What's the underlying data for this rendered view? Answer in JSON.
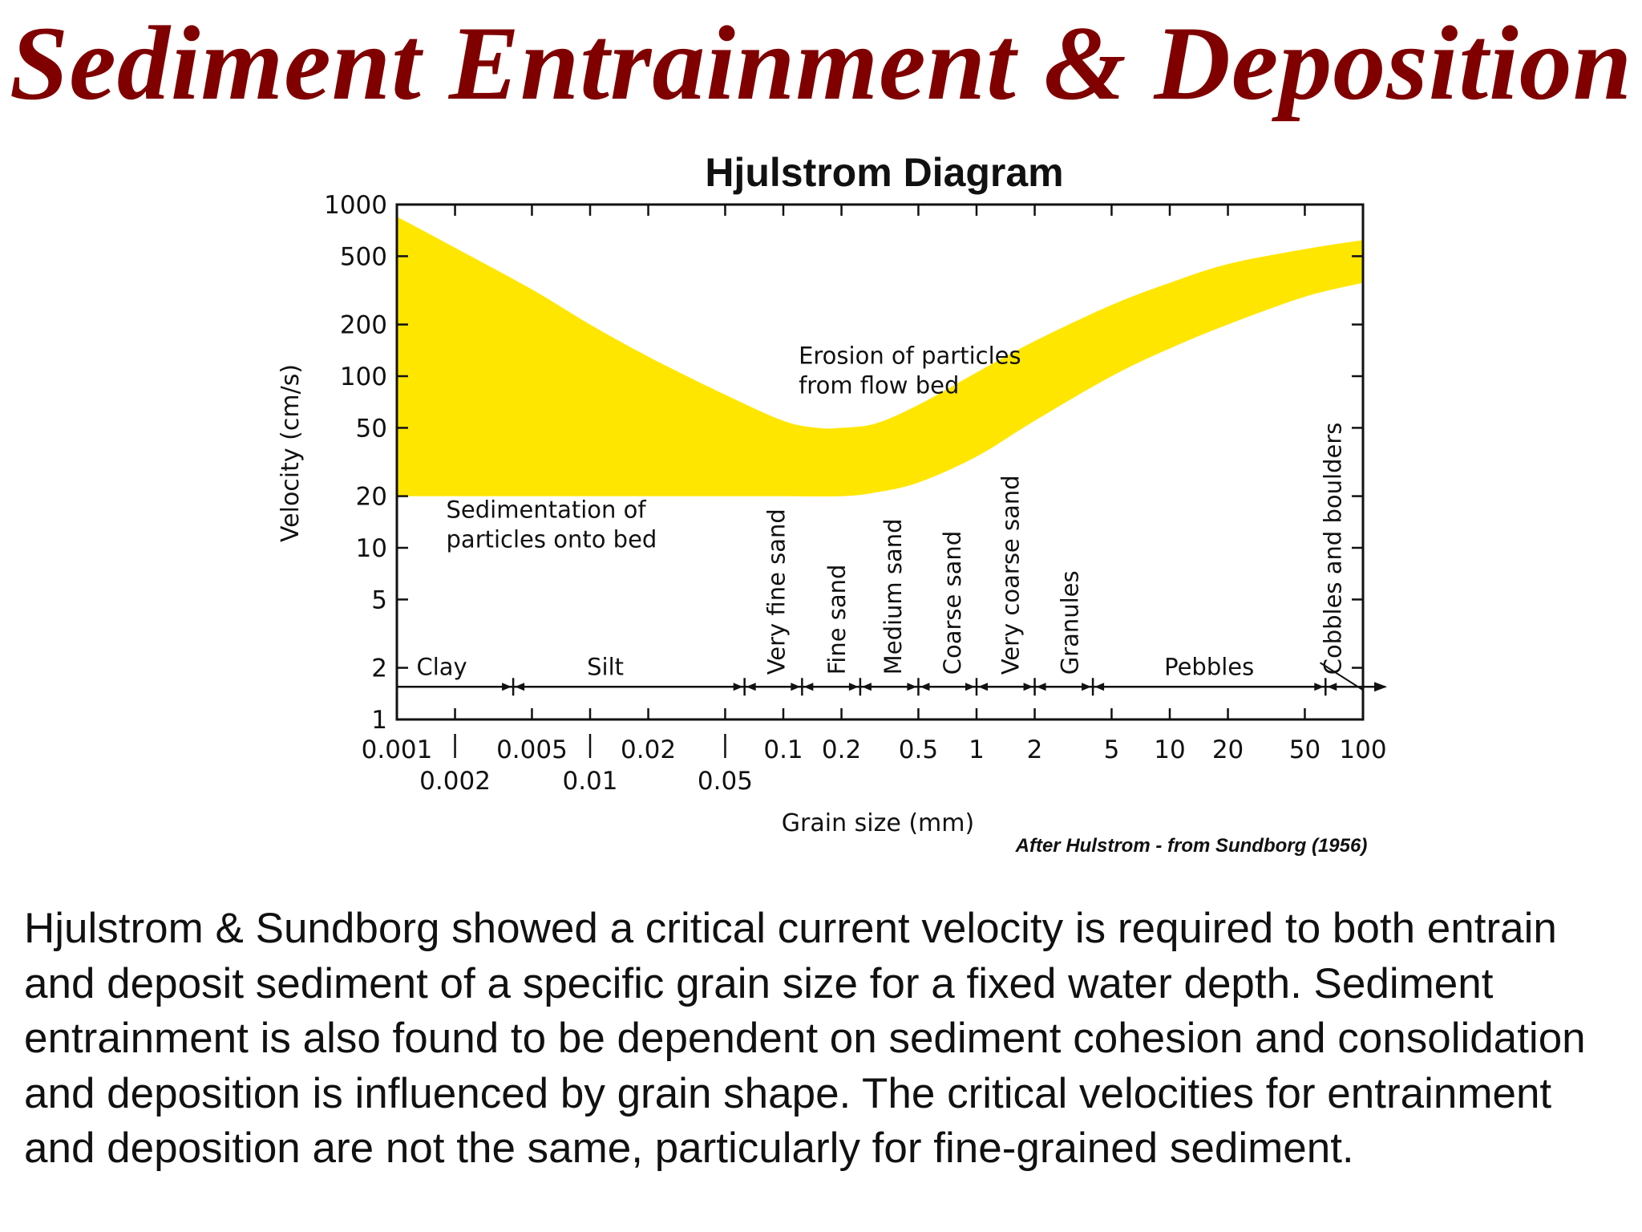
{
  "slide": {
    "title": "Sediment Entrainment & Deposition",
    "body": "Hjulstrom & Sundborg showed a critical current velocity is required to both entrain and deposit sediment of a specific grain size for a fixed water depth. Sediment entrainment is also found to be dependent on sediment cohesion and consolidation and deposition is influenced by grain shape.  The critical velocities for entrainment and deposition are not the same, particularly for fine-grained sediment."
  },
  "colors": {
    "title": "#800000",
    "band": "#ffe600",
    "ink": "#111111"
  },
  "chart_data": {
    "type": "area",
    "title": "Hjulstrom Diagram",
    "xlabel": "Grain size (mm)",
    "ylabel": "Velocity (cm/s)",
    "x_scale": "log",
    "y_scale": "log",
    "xlim": [
      0.001,
      100
    ],
    "ylim": [
      1,
      1000
    ],
    "credit": "After Hulstrom - from Sundborg (1956)",
    "grid": false,
    "y_ticks": [
      {
        "value": 1,
        "label": "1"
      },
      {
        "value": 2,
        "label": "2"
      },
      {
        "value": 5,
        "label": "5"
      },
      {
        "value": 10,
        "label": "10"
      },
      {
        "value": 20,
        "label": "20"
      },
      {
        "value": 50,
        "label": "50"
      },
      {
        "value": 100,
        "label": "100"
      },
      {
        "value": 200,
        "label": "200"
      },
      {
        "value": 500,
        "label": "500"
      },
      {
        "value": 1000,
        "label": "1000"
      }
    ],
    "x_ticks": [
      {
        "value": 0.001,
        "label": "0.001",
        "row": 1
      },
      {
        "value": 0.002,
        "label": "0.002",
        "row": 2
      },
      {
        "value": 0.005,
        "label": "0.005",
        "row": 1
      },
      {
        "value": 0.01,
        "label": "0.01",
        "row": 2
      },
      {
        "value": 0.02,
        "label": "0.02",
        "row": 1
      },
      {
        "value": 0.05,
        "label": "0.05",
        "row": 2
      },
      {
        "value": 0.1,
        "label": "0.1",
        "row": 1
      },
      {
        "value": 0.2,
        "label": "0.2",
        "row": 1
      },
      {
        "value": 0.5,
        "label": "0.5",
        "row": 1
      },
      {
        "value": 1,
        "label": "1",
        "row": 1
      },
      {
        "value": 2,
        "label": "2",
        "row": 1
      },
      {
        "value": 5,
        "label": "5",
        "row": 1
      },
      {
        "value": 10,
        "label": "10",
        "row": 1
      },
      {
        "value": 20,
        "label": "20",
        "row": 1
      },
      {
        "value": 50,
        "label": "50",
        "row": 1
      },
      {
        "value": 100,
        "label": "100",
        "row": 1
      }
    ],
    "series": [
      {
        "name": "Erosion of particles from flow bed",
        "role": "upper",
        "x": [
          0.001,
          0.002,
          0.005,
          0.01,
          0.02,
          0.05,
          0.1,
          0.15,
          0.2,
          0.3,
          0.5,
          1,
          2,
          5,
          10,
          20,
          50,
          100
        ],
        "y": [
          850,
          560,
          320,
          200,
          130,
          78,
          55,
          50,
          50,
          53,
          68,
          105,
          160,
          260,
          350,
          450,
          550,
          620
        ]
      },
      {
        "name": "",
        "role": "lower",
        "x": [
          0.001,
          0.002,
          0.005,
          0.01,
          0.02,
          0.05,
          0.1,
          0.2,
          0.3,
          0.5,
          1,
          2,
          5,
          10,
          20,
          50,
          100
        ],
        "y": [
          20,
          20,
          20,
          20,
          20,
          20,
          20,
          20,
          21,
          24,
          34,
          55,
          100,
          145,
          200,
          290,
          350
        ]
      }
    ],
    "annotations": [
      {
        "name": "erosion-label",
        "lines": [
          "Erosion of particles",
          "from flow bed"
        ],
        "x": 0.12,
        "y": 118
      },
      {
        "name": "sedimentation-label",
        "lines": [
          "Sedimentation of",
          "particles onto bed"
        ],
        "x": 0.0018,
        "y": 15
      }
    ],
    "grain_classes": {
      "horizontal": [
        {
          "label": "Clay",
          "x": 0.0013
        },
        {
          "label": "Silt",
          "x": 0.012
        },
        {
          "label": "Pebbles",
          "x": 16
        }
      ],
      "vertical": [
        {
          "label": "Very fine sand",
          "x": 0.092
        },
        {
          "label": "Fine sand",
          "x": 0.19
        },
        {
          "label": "Medium sand",
          "x": 0.37
        },
        {
          "label": "Coarse sand",
          "x": 0.75
        },
        {
          "label": "Very coarse sand",
          "x": 1.5
        },
        {
          "label": "Granules",
          "x": 3.05
        },
        {
          "label": "Cobbles and boulders",
          "x": 70
        }
      ],
      "boundaries": [
        0.004,
        0.063,
        0.125,
        0.25,
        0.5,
        1,
        2,
        4,
        64
      ]
    }
  }
}
